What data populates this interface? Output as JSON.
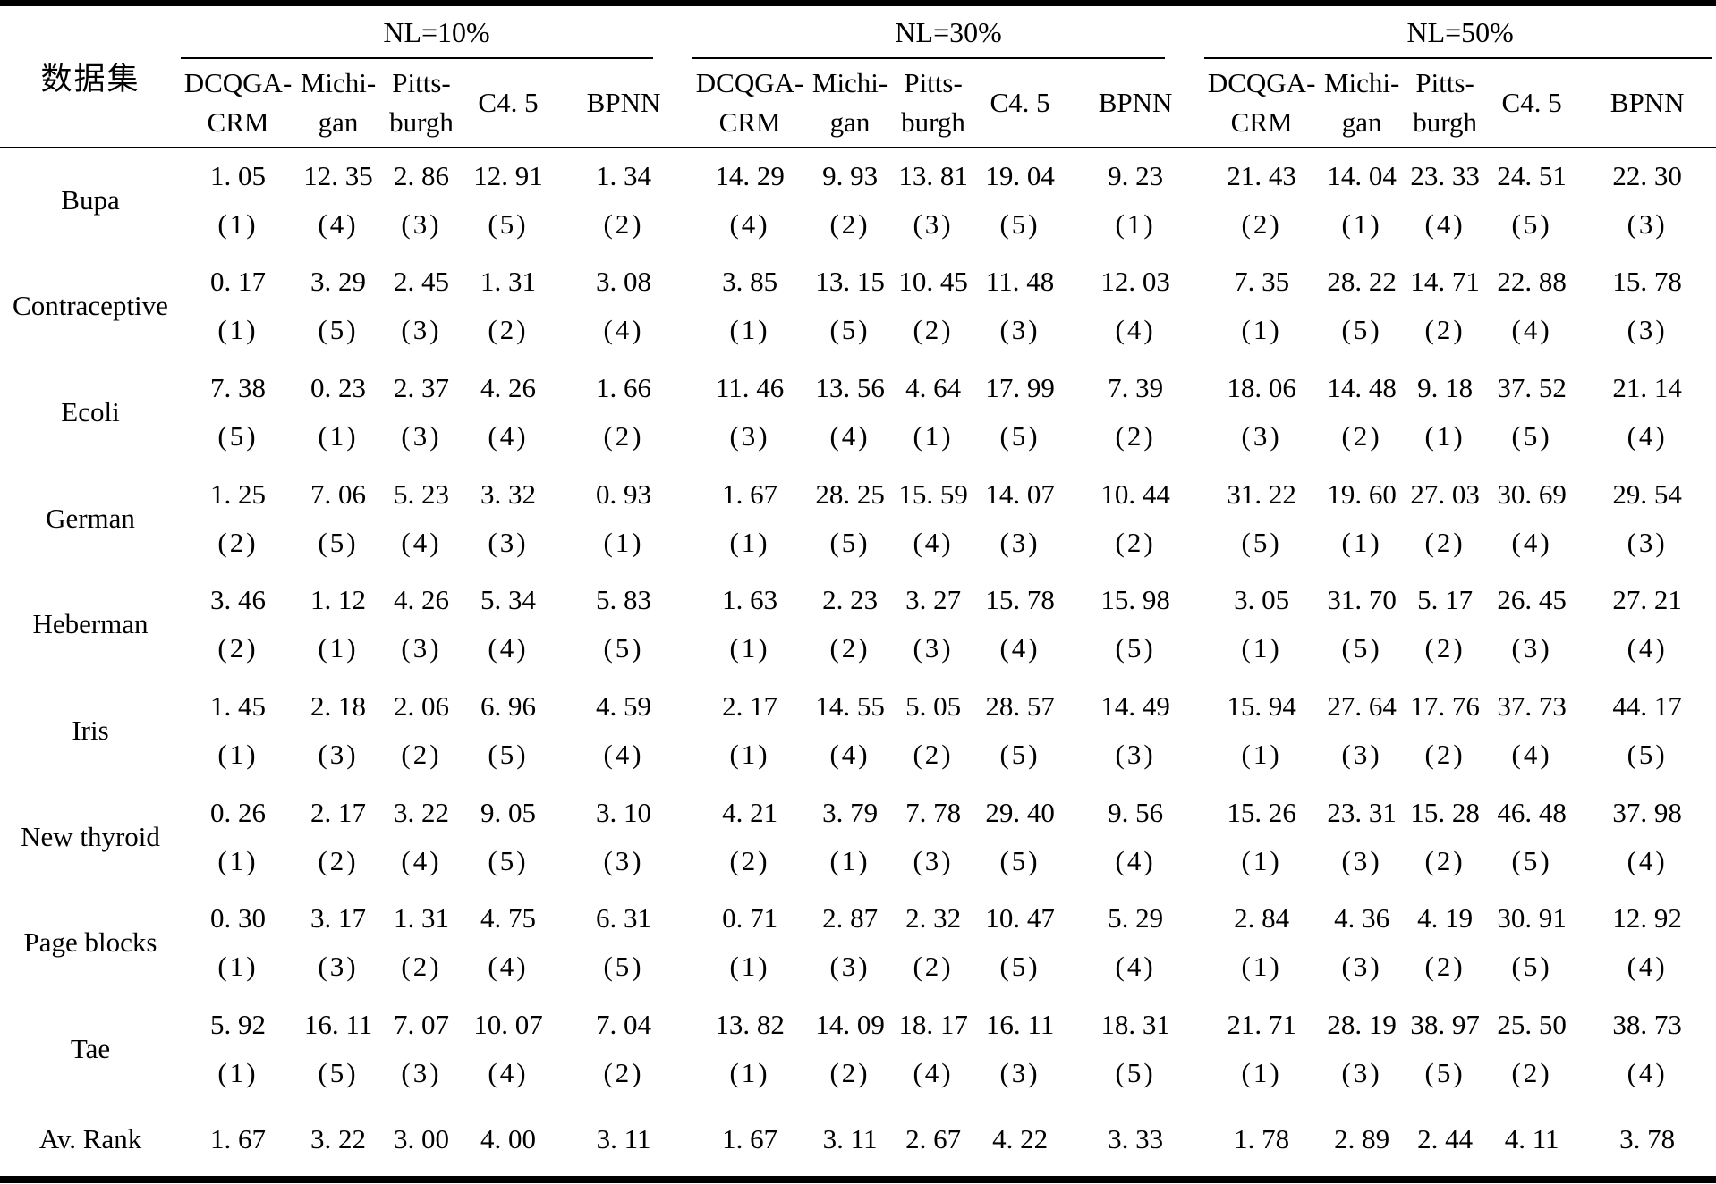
{
  "table": {
    "dataset_header": "数据集",
    "groups": [
      {
        "label": "NL=10%"
      },
      {
        "label": "NL=30%"
      },
      {
        "label": "NL=50%"
      }
    ],
    "algorithms": [
      {
        "line1": "DCQGA-",
        "line2": "CRM"
      },
      {
        "line1": "Michi-",
        "line2": "gan"
      },
      {
        "line1": "Pitts-",
        "line2": "burgh"
      },
      {
        "line1": "C4. 5",
        "line2": ""
      },
      {
        "line1": "BPNN",
        "line2": ""
      }
    ],
    "rows": [
      {
        "name": "Bupa",
        "cells": [
          [
            "1. 05",
            "(1)"
          ],
          [
            "12. 35",
            "(4)"
          ],
          [
            "2. 86",
            "(3)"
          ],
          [
            "12. 91",
            "(5)"
          ],
          [
            "1. 34",
            "(2)"
          ],
          [
            "14. 29",
            "(4)"
          ],
          [
            "9. 93",
            "(2)"
          ],
          [
            "13. 81",
            "(3)"
          ],
          [
            "19. 04",
            "(5)"
          ],
          [
            "9. 23",
            "(1)"
          ],
          [
            "21. 43",
            "(2)"
          ],
          [
            "14. 04",
            "(1)"
          ],
          [
            "23. 33",
            "(4)"
          ],
          [
            "24. 51",
            "(5)"
          ],
          [
            "22. 30",
            "(3)"
          ]
        ]
      },
      {
        "name": "Contraceptive",
        "cells": [
          [
            "0. 17",
            "(1)"
          ],
          [
            "3. 29",
            "(5)"
          ],
          [
            "2. 45",
            "(3)"
          ],
          [
            "1. 31",
            "(2)"
          ],
          [
            "3. 08",
            "(4)"
          ],
          [
            "3. 85",
            "(1)"
          ],
          [
            "13. 15",
            "(5)"
          ],
          [
            "10. 45",
            "(2)"
          ],
          [
            "11. 48",
            "(3)"
          ],
          [
            "12. 03",
            "(4)"
          ],
          [
            "7. 35",
            "(1)"
          ],
          [
            "28. 22",
            "(5)"
          ],
          [
            "14. 71",
            "(2)"
          ],
          [
            "22. 88",
            "(4)"
          ],
          [
            "15. 78",
            "(3)"
          ]
        ]
      },
      {
        "name": "Ecoli",
        "cells": [
          [
            "7. 38",
            "(5)"
          ],
          [
            "0. 23",
            "(1)"
          ],
          [
            "2. 37",
            "(3)"
          ],
          [
            "4. 26",
            "(4)"
          ],
          [
            "1. 66",
            "(2)"
          ],
          [
            "11. 46",
            "(3)"
          ],
          [
            "13. 56",
            "(4)"
          ],
          [
            "4. 64",
            "(1)"
          ],
          [
            "17. 99",
            "(5)"
          ],
          [
            "7. 39",
            "(2)"
          ],
          [
            "18. 06",
            "(3)"
          ],
          [
            "14. 48",
            "(2)"
          ],
          [
            "9. 18",
            "(1)"
          ],
          [
            "37. 52",
            "(5)"
          ],
          [
            "21. 14",
            "(4)"
          ]
        ]
      },
      {
        "name": "German",
        "cells": [
          [
            "1. 25",
            "(2)"
          ],
          [
            "7. 06",
            "(5)"
          ],
          [
            "5. 23",
            "(4)"
          ],
          [
            "3. 32",
            "(3)"
          ],
          [
            "0. 93",
            "(1)"
          ],
          [
            "1. 67",
            "(1)"
          ],
          [
            "28. 25",
            "(5)"
          ],
          [
            "15. 59",
            "(4)"
          ],
          [
            "14. 07",
            "(3)"
          ],
          [
            "10. 44",
            "(2)"
          ],
          [
            "31. 22",
            "(5)"
          ],
          [
            "19. 60",
            "(1)"
          ],
          [
            "27. 03",
            "(2)"
          ],
          [
            "30. 69",
            "(4)"
          ],
          [
            "29. 54",
            "(3)"
          ]
        ]
      },
      {
        "name": "Heberman",
        "cells": [
          [
            "3. 46",
            "(2)"
          ],
          [
            "1. 12",
            "(1)"
          ],
          [
            "4. 26",
            "(3)"
          ],
          [
            "5. 34",
            "(4)"
          ],
          [
            "5. 83",
            "(5)"
          ],
          [
            "1. 63",
            "(1)"
          ],
          [
            "2. 23",
            "(2)"
          ],
          [
            "3. 27",
            "(3)"
          ],
          [
            "15. 78",
            "(4)"
          ],
          [
            "15. 98",
            "(5)"
          ],
          [
            "3. 05",
            "(1)"
          ],
          [
            "31. 70",
            "(5)"
          ],
          [
            "5. 17",
            "(2)"
          ],
          [
            "26. 45",
            "(3)"
          ],
          [
            "27. 21",
            "(4)"
          ]
        ]
      },
      {
        "name": "Iris",
        "cells": [
          [
            "1. 45",
            "(1)"
          ],
          [
            "2. 18",
            "(3)"
          ],
          [
            "2. 06",
            "(2)"
          ],
          [
            "6. 96",
            "(5)"
          ],
          [
            "4. 59",
            "(4)"
          ],
          [
            "2. 17",
            "(1)"
          ],
          [
            "14. 55",
            "(4)"
          ],
          [
            "5. 05",
            "(2)"
          ],
          [
            "28. 57",
            "(5)"
          ],
          [
            "14. 49",
            "(3)"
          ],
          [
            "15. 94",
            "(1)"
          ],
          [
            "27. 64",
            "(3)"
          ],
          [
            "17. 76",
            "(2)"
          ],
          [
            "37. 73",
            "(4)"
          ],
          [
            "44. 17",
            "(5)"
          ]
        ]
      },
      {
        "name": "New thyroid",
        "cells": [
          [
            "0. 26",
            "(1)"
          ],
          [
            "2. 17",
            "(2)"
          ],
          [
            "3. 22",
            "(4)"
          ],
          [
            "9. 05",
            "(5)"
          ],
          [
            "3. 10",
            "(3)"
          ],
          [
            "4. 21",
            "(2)"
          ],
          [
            "3. 79",
            "(1)"
          ],
          [
            "7. 78",
            "(3)"
          ],
          [
            "29. 40",
            "(5)"
          ],
          [
            "9. 56",
            "(4)"
          ],
          [
            "15. 26",
            "(1)"
          ],
          [
            "23. 31",
            "(3)"
          ],
          [
            "15. 28",
            "(2)"
          ],
          [
            "46. 48",
            "(5)"
          ],
          [
            "37. 98",
            "(4)"
          ]
        ]
      },
      {
        "name": "Page blocks",
        "cells": [
          [
            "0. 30",
            "(1)"
          ],
          [
            "3. 17",
            "(3)"
          ],
          [
            "1. 31",
            "(2)"
          ],
          [
            "4. 75",
            "(4)"
          ],
          [
            "6. 31",
            "(5)"
          ],
          [
            "0. 71",
            "(1)"
          ],
          [
            "2. 87",
            "(3)"
          ],
          [
            "2. 32",
            "(2)"
          ],
          [
            "10. 47",
            "(5)"
          ],
          [
            "5. 29",
            "(4)"
          ],
          [
            "2. 84",
            "(1)"
          ],
          [
            "4. 36",
            "(3)"
          ],
          [
            "4. 19",
            "(2)"
          ],
          [
            "30. 91",
            "(5)"
          ],
          [
            "12. 92",
            "(4)"
          ]
        ]
      },
      {
        "name": "Tae",
        "cells": [
          [
            "5. 92",
            "(1)"
          ],
          [
            "16. 11",
            "(5)"
          ],
          [
            "7. 07",
            "(3)"
          ],
          [
            "10. 07",
            "(4)"
          ],
          [
            "7. 04",
            "(2)"
          ],
          [
            "13. 82",
            "(1)"
          ],
          [
            "14. 09",
            "(2)"
          ],
          [
            "18. 17",
            "(4)"
          ],
          [
            "16. 11",
            "(3)"
          ],
          [
            "18. 31",
            "(5)"
          ],
          [
            "21. 71",
            "(1)"
          ],
          [
            "28. 19",
            "(3)"
          ],
          [
            "38. 97",
            "(5)"
          ],
          [
            "25. 50",
            "(2)"
          ],
          [
            "38. 73",
            "(4)"
          ]
        ]
      }
    ],
    "footer_row": {
      "name": "Av. Rank",
      "values": [
        "1. 67",
        "3. 22",
        "3. 00",
        "4. 00",
        "3. 11",
        "1. 67",
        "3. 11",
        "2. 67",
        "4. 22",
        "3. 33",
        "1. 78",
        "2. 89",
        "2. 44",
        "4. 11",
        "3. 78"
      ]
    }
  }
}
